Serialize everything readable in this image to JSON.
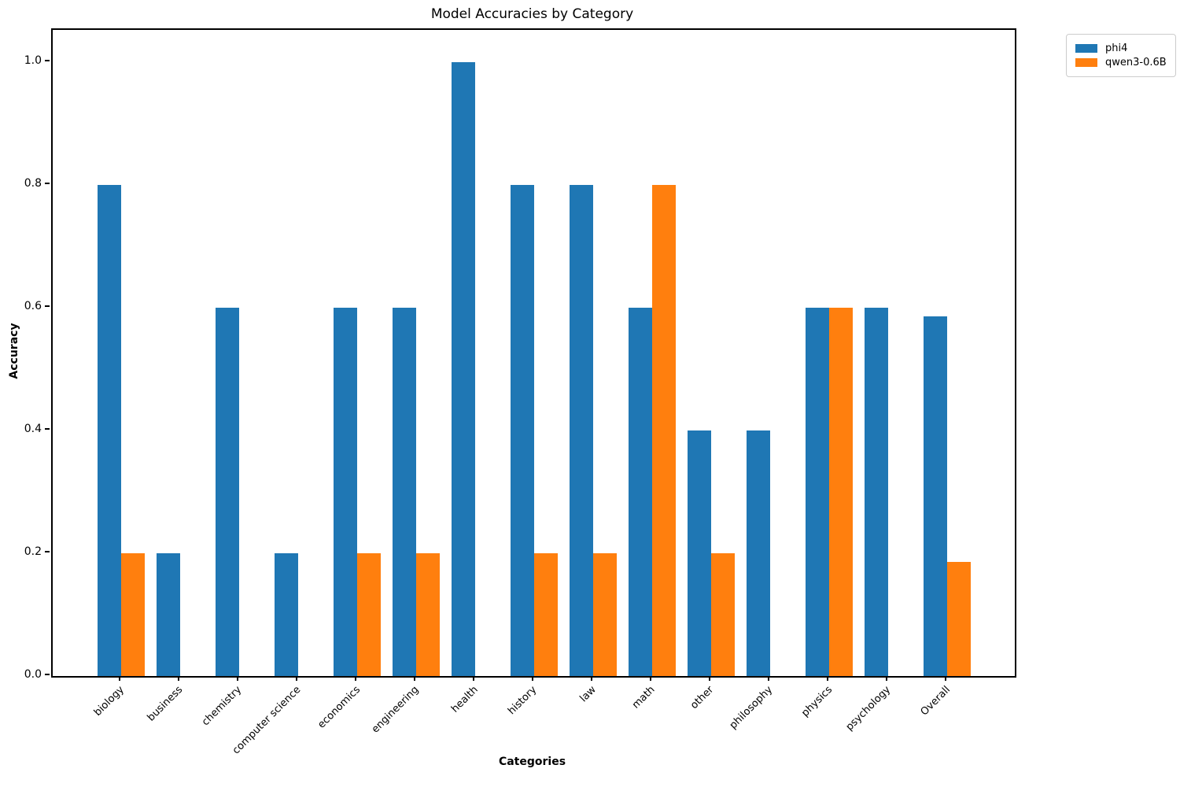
{
  "title": "Model Accuracies by Category",
  "axes": {
    "xlabel": "Categories",
    "ylabel": "Accuracy"
  },
  "legend": {
    "entries": [
      {
        "label": "phi4",
        "color": "#1f77b4"
      },
      {
        "label": "qwen3-0.6B",
        "color": "#ff7f0e"
      }
    ]
  },
  "chart_data": {
    "type": "bar",
    "title": "Model Accuracies by Category",
    "xlabel": "Categories",
    "ylabel": "Accuracy",
    "categories": [
      "biology",
      "business",
      "chemistry",
      "computer science",
      "economics",
      "engineering",
      "health",
      "history",
      "law",
      "math",
      "other",
      "philosophy",
      "physics",
      "psychology",
      "Overall"
    ],
    "series": [
      {
        "name": "phi4",
        "color": "#1f77b4",
        "values": [
          0.8,
          0.2,
          0.6,
          0.2,
          0.6,
          0.6,
          1.0,
          0.8,
          0.8,
          0.6,
          0.4,
          0.4,
          0.6,
          0.6,
          0.5857
        ]
      },
      {
        "name": "qwen3-0.6B",
        "color": "#ff7f0e",
        "values": [
          0.2,
          0.0,
          0.0,
          0.0,
          0.2,
          0.2,
          0.0,
          0.2,
          0.2,
          0.8,
          0.2,
          0.0,
          0.6,
          0.0,
          0.1857
        ]
      }
    ],
    "yticks": [
      0.0,
      0.2,
      0.4,
      0.6,
      0.8,
      1.0
    ],
    "y_tick_labels": [
      "0.0",
      "0.2",
      "0.4",
      "0.6",
      "0.8",
      "1.0"
    ],
    "ylim": [
      0,
      1.0526
    ],
    "grid": false,
    "legend_position": "upper-right-outside",
    "bar_width_fraction": 0.4
  }
}
